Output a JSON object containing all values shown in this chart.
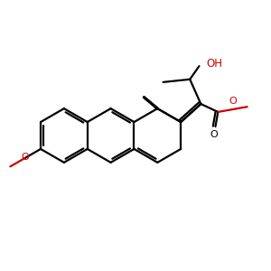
{
  "bg_color": "#ffffff",
  "bond_color": "#000000",
  "red_color": "#cc0000",
  "bond_width": 1.6,
  "figsize": [
    3.0,
    3.0
  ],
  "dpi": 100,
  "xlim": [
    -0.5,
    9.5
  ],
  "ylim": [
    0.5,
    9.5
  ]
}
